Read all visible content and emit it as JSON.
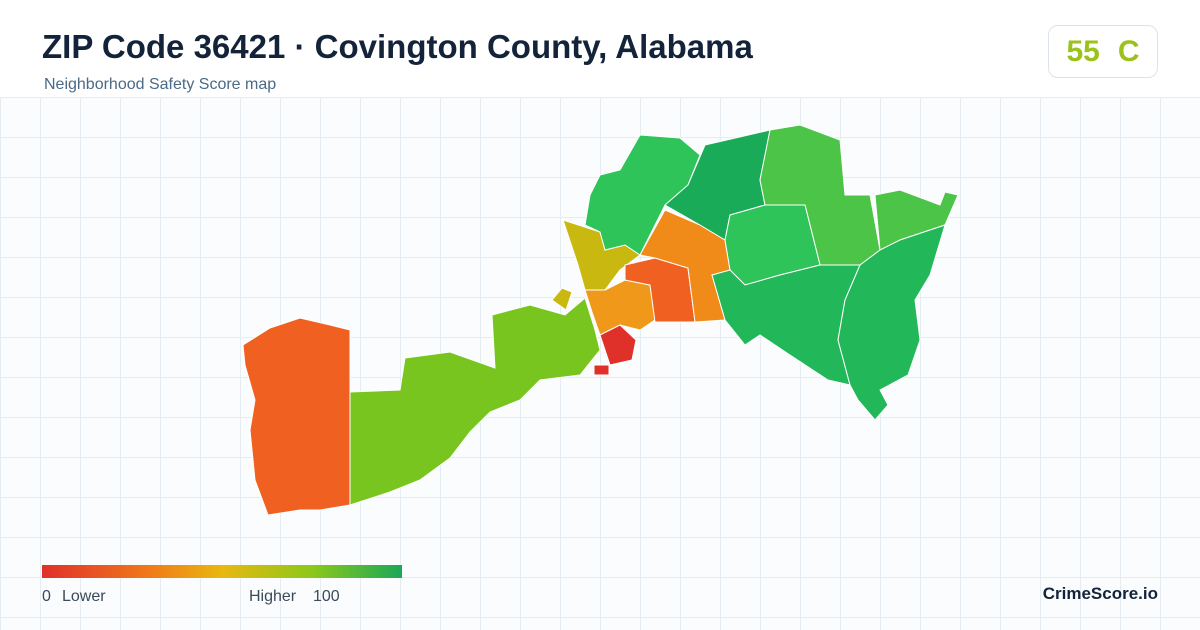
{
  "header": {
    "title": "ZIP Code 36421 · Covington County, Alabama",
    "subtitle": "Neighborhood Safety Score map"
  },
  "score": {
    "value": 55,
    "grade": "C"
  },
  "legend": {
    "min": 0,
    "min_label": "Lower",
    "max_label": "Higher",
    "max": 100
  },
  "brand": "CrimeScore.io"
}
